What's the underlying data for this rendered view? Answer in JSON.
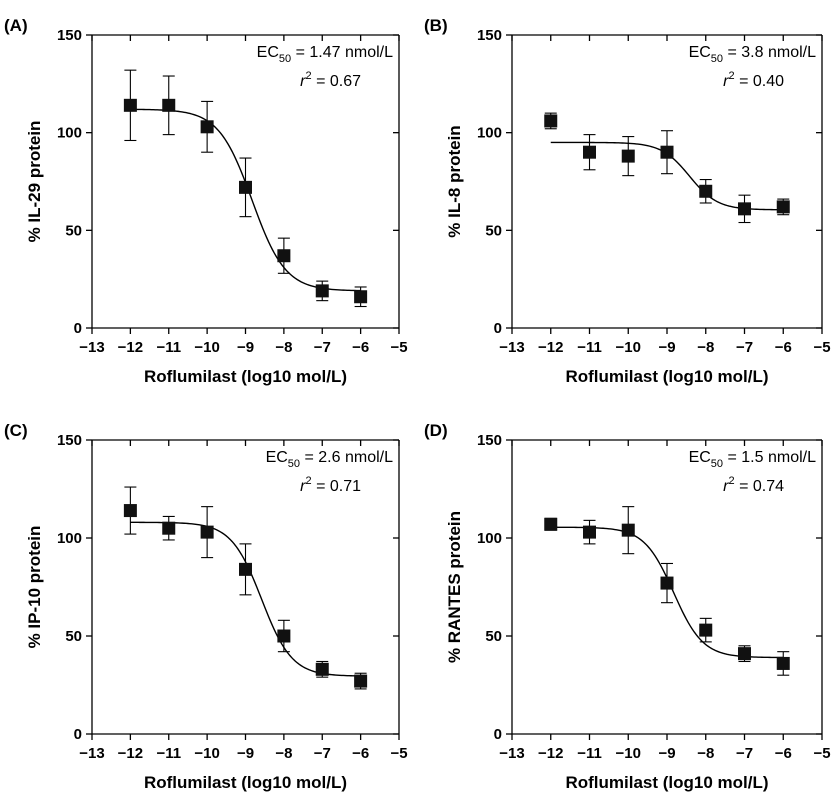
{
  "chart_data": [
    {
      "type": "scatter",
      "panel_label": "(A)",
      "ylabel": "% IL-29 protein",
      "xlabel": "Roflumilast (log10 mol/L)",
      "xlim": [
        -13,
        -5
      ],
      "ylim": [
        0,
        150
      ],
      "xticks": [
        "−13",
        "−12",
        "−11",
        "−10",
        "−9",
        "−8",
        "−7",
        "−6",
        "−5"
      ],
      "yticks": [
        "0",
        "50",
        "100",
        "150"
      ],
      "ec50_text": "= 1.47 nmol/L",
      "r2_text": "= 0.67",
      "points": [
        {
          "x": -12,
          "y": 114,
          "err": 18
        },
        {
          "x": -11,
          "y": 114,
          "err": 15
        },
        {
          "x": -10,
          "y": 103,
          "err": 13
        },
        {
          "x": -9,
          "y": 72,
          "err": 15
        },
        {
          "x": -8,
          "y": 37,
          "err": 9
        },
        {
          "x": -7,
          "y": 19,
          "err": 5
        },
        {
          "x": -6,
          "y": 16,
          "err": 5
        }
      ],
      "fit": {
        "top": 112,
        "bottom": 19,
        "log_ec50": -8.83,
        "hill": 1.0
      }
    },
    {
      "type": "scatter",
      "panel_label": "(B)",
      "ylabel": "% IL-8 protein",
      "xlabel": "Roflumilast (log10 mol/L)",
      "xlim": [
        -13,
        -5
      ],
      "ylim": [
        0,
        150
      ],
      "xticks": [
        "−13",
        "−12",
        "−11",
        "−10",
        "−9",
        "−8",
        "−7",
        "−6",
        "−5"
      ],
      "yticks": [
        "0",
        "50",
        "100",
        "150"
      ],
      "ec50_text": "= 3.8 nmol/L",
      "r2_text": "= 0.40",
      "points": [
        {
          "x": -12,
          "y": 106,
          "err": 4
        },
        {
          "x": -11,
          "y": 90,
          "err": 9
        },
        {
          "x": -10,
          "y": 88,
          "err": 10
        },
        {
          "x": -9,
          "y": 90,
          "err": 11
        },
        {
          "x": -8,
          "y": 70,
          "err": 6
        },
        {
          "x": -7,
          "y": 61,
          "err": 7
        },
        {
          "x": -6,
          "y": 62,
          "err": 4
        }
      ],
      "fit": {
        "top": 95,
        "bottom": 60.5,
        "log_ec50": -8.42,
        "hill": 1.2
      }
    },
    {
      "type": "scatter",
      "panel_label": "(C)",
      "ylabel": "% IP-10 protein",
      "xlabel": "Roflumilast (log10 mol/L)",
      "xlim": [
        -13,
        -5
      ],
      "ylim": [
        0,
        150
      ],
      "xticks": [
        "−13",
        "−12",
        "−11",
        "−10",
        "−9",
        "−8",
        "−7",
        "−6",
        "−5"
      ],
      "yticks": [
        "0",
        "50",
        "100",
        "150"
      ],
      "ec50_text": "= 2.6 nmol/L",
      "r2_text": "= 0.71",
      "points": [
        {
          "x": -12,
          "y": 114,
          "err": 12
        },
        {
          "x": -11,
          "y": 105,
          "err": 6
        },
        {
          "x": -10,
          "y": 103,
          "err": 13
        },
        {
          "x": -9,
          "y": 84,
          "err": 13
        },
        {
          "x": -8,
          "y": 50,
          "err": 8
        },
        {
          "x": -7,
          "y": 33,
          "err": 4
        },
        {
          "x": -6,
          "y": 27,
          "err": 4
        }
      ],
      "fit": {
        "top": 108,
        "bottom": 29.5,
        "log_ec50": -8.58,
        "hill": 1.1
      }
    },
    {
      "type": "scatter",
      "panel_label": "(D)",
      "ylabel": "% RANTES protein",
      "xlabel": "Roflumilast (log10 mol/L)",
      "xlim": [
        -13,
        -5
      ],
      "ylim": [
        0,
        150
      ],
      "xticks": [
        "−13",
        "−12",
        "−11",
        "−10",
        "−9",
        "−8",
        "−7",
        "−6",
        "−5"
      ],
      "yticks": [
        "0",
        "50",
        "100",
        "150"
      ],
      "ec50_text": "= 1.5 nmol/L",
      "r2_text": "= 0.74",
      "points": [
        {
          "x": -12,
          "y": 107,
          "err": 3
        },
        {
          "x": -11,
          "y": 103,
          "err": 6
        },
        {
          "x": -10,
          "y": 104,
          "err": 12
        },
        {
          "x": -9,
          "y": 77,
          "err": 10
        },
        {
          "x": -8,
          "y": 53,
          "err": 6
        },
        {
          "x": -7,
          "y": 41,
          "err": 4
        },
        {
          "x": -6,
          "y": 36,
          "err": 6
        }
      ],
      "fit": {
        "top": 105.5,
        "bottom": 39,
        "log_ec50": -8.83,
        "hill": 1.15
      }
    }
  ]
}
